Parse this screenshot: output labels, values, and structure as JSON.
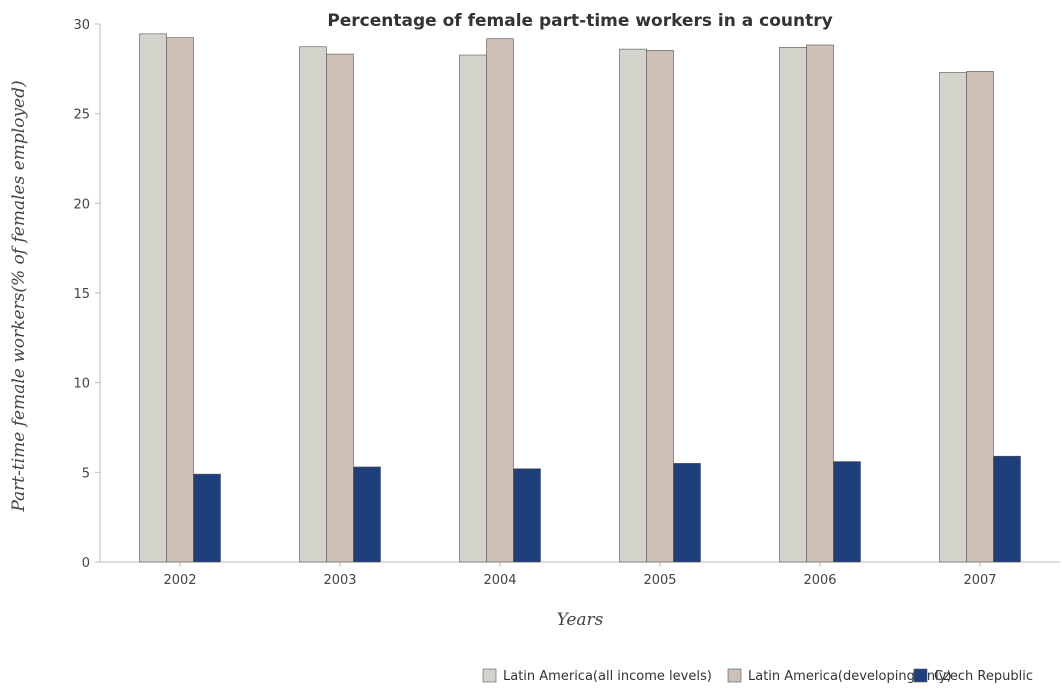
{
  "chart_data": {
    "type": "bar",
    "title": "Percentage of female part-time workers in a country",
    "xlabel": "Years",
    "ylabel": "Part-time female workers(% of females employed)",
    "categories": [
      "2002",
      "2003",
      "2004",
      "2005",
      "2006",
      "2007"
    ],
    "ylim": [
      0,
      30
    ],
    "yticks": [
      0,
      5,
      10,
      15,
      20,
      25,
      30
    ],
    "grid": false,
    "legend_position": "bottom-right",
    "series": [
      {
        "name": "Latin America(all income levels)",
        "color": "#d4d4cc",
        "values": [
          29.45,
          28.73,
          28.27,
          28.6,
          28.7,
          27.3
        ]
      },
      {
        "name": "Latin America(developing only)",
        "color": "#cfc0b7",
        "values": [
          29.24,
          28.32,
          29.18,
          28.53,
          28.83,
          27.36
        ]
      },
      {
        "name": "Czech Republic",
        "color": "#1d3f7c",
        "values": [
          4.9,
          5.3,
          5.2,
          5.5,
          5.6,
          5.9
        ]
      }
    ]
  }
}
